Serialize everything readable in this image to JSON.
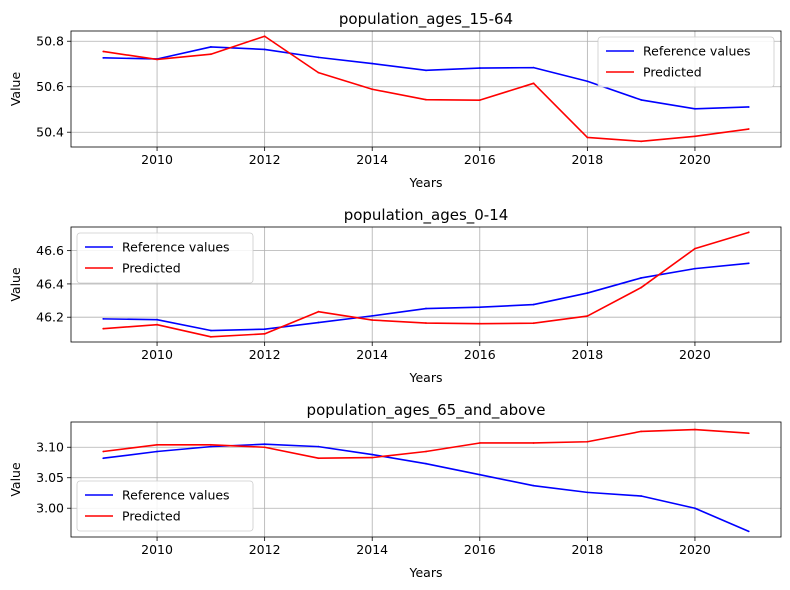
{
  "chart_data": [
    {
      "type": "line",
      "title": "population_ages_15-64",
      "xlabel": "Years",
      "ylabel": "Value",
      "x": [
        2009,
        2010,
        2011,
        2012,
        2013,
        2014,
        2015,
        2016,
        2017,
        2018,
        2019,
        2020,
        2021
      ],
      "xlim": [
        2008.4,
        2021.6
      ],
      "ylim": [
        50.335,
        50.845
      ],
      "xticks": [
        2010,
        2012,
        2014,
        2016,
        2018,
        2020
      ],
      "yticks": [
        50.4,
        50.6,
        50.8
      ],
      "series": [
        {
          "name": "Reference values",
          "color": "#0000ff",
          "values": [
            50.727,
            50.722,
            50.775,
            50.764,
            50.729,
            50.702,
            50.672,
            50.682,
            50.684,
            50.624,
            50.542,
            50.503,
            50.511
          ]
        },
        {
          "name": "Predicted",
          "color": "#ff0000",
          "values": [
            50.755,
            50.72,
            50.743,
            50.822,
            50.662,
            50.589,
            50.543,
            50.541,
            50.615,
            50.377,
            50.36,
            50.382,
            50.414
          ]
        }
      ],
      "grid": true,
      "legend": "upper right"
    },
    {
      "type": "line",
      "title": "population_ages_0-14",
      "xlabel": "Years",
      "ylabel": "Value",
      "x": [
        2009,
        2010,
        2011,
        2012,
        2013,
        2014,
        2015,
        2016,
        2017,
        2018,
        2019,
        2020,
        2021
      ],
      "xlim": [
        2008.4,
        2021.6
      ],
      "ylim": [
        46.051,
        46.742
      ],
      "xticks": [
        2010,
        2012,
        2014,
        2016,
        2018,
        2020
      ],
      "yticks": [
        46.2,
        46.4,
        46.6
      ],
      "series": [
        {
          "name": "Reference values",
          "color": "#0000ff",
          "values": [
            46.19,
            46.185,
            46.12,
            46.128,
            46.168,
            46.208,
            46.252,
            46.26,
            46.276,
            46.345,
            46.436,
            46.492,
            46.524
          ]
        },
        {
          "name": "Predicted",
          "color": "#ff0000",
          "values": [
            46.131,
            46.155,
            46.082,
            46.1,
            46.233,
            46.183,
            46.165,
            46.161,
            46.164,
            46.207,
            46.378,
            46.612,
            46.71
          ]
        }
      ],
      "grid": true,
      "legend": "upper left"
    },
    {
      "type": "line",
      "title": "population_ages_65_and_above",
      "xlabel": "Years",
      "ylabel": "Value",
      "x": [
        2009,
        2010,
        2011,
        2012,
        2013,
        2014,
        2015,
        2016,
        2017,
        2018,
        2019,
        2020,
        2021
      ],
      "xlim": [
        2008.4,
        2021.6
      ],
      "ylim": [
        2.9528,
        3.1414
      ],
      "xticks": [
        2010,
        2012,
        2014,
        2016,
        2018,
        2020
      ],
      "yticks": [
        3.0,
        3.05,
        3.1
      ],
      "ytick_labels": [
        "3.00",
        "3.05",
        "3.10"
      ],
      "series": [
        {
          "name": "Reference values",
          "color": "#0000ff",
          "values": [
            3.082,
            3.093,
            3.101,
            3.105,
            3.101,
            3.088,
            3.073,
            3.055,
            3.037,
            3.026,
            3.02,
            3.0,
            2.962
          ]
        },
        {
          "name": "Predicted",
          "color": "#ff0000",
          "values": [
            3.093,
            3.104,
            3.104,
            3.1,
            3.082,
            3.083,
            3.093,
            3.107,
            3.107,
            3.109,
            3.126,
            3.129,
            3.123
          ]
        }
      ],
      "grid": true,
      "legend": "lower left"
    }
  ]
}
